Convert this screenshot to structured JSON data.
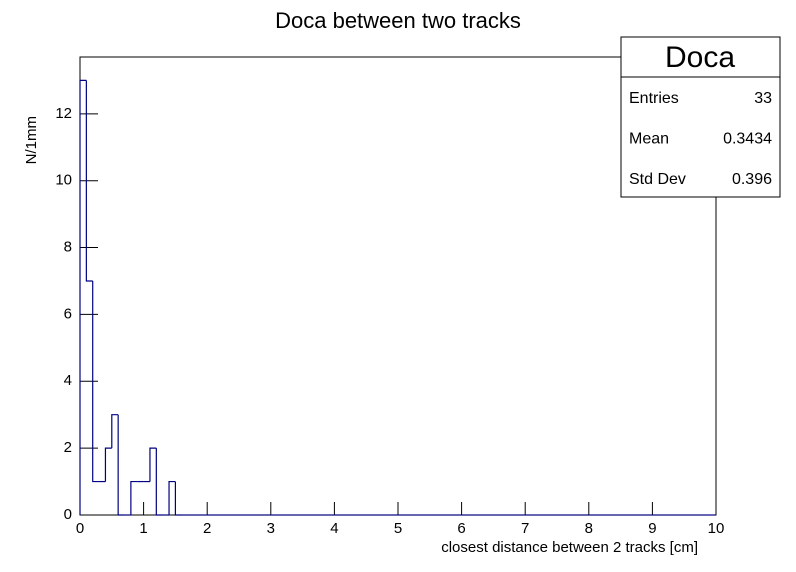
{
  "chart_data": {
    "type": "histogram",
    "title": "Doca between two tracks",
    "xlabel": "closest distance between 2 tracks   [cm]",
    "ylabel": "N/1mm",
    "color": "#000080",
    "bins": [
      0,
      0.1,
      0.2,
      0.3,
      0.4,
      0.5,
      0.6,
      0.7,
      0.8,
      0.9,
      1,
      1.1,
      1.2,
      1.3,
      1.4,
      1.5,
      1.6,
      1.7,
      1.8,
      1.9,
      2,
      2.1,
      2.2,
      2.3,
      2.4,
      2.5,
      2.6,
      2.7,
      2.8,
      2.9,
      3,
      3.1,
      3.2,
      3.3,
      3.4,
      3.5,
      3.6,
      3.7,
      3.8,
      3.9,
      4,
      4.1,
      4.2,
      4.3,
      4.4,
      4.5,
      4.6,
      4.7,
      4.8,
      4.9,
      5,
      5.1,
      5.2,
      5.3,
      5.4,
      5.5,
      5.6,
      5.7,
      5.8,
      5.9,
      6,
      6.1,
      6.2,
      6.3,
      6.4,
      6.5,
      6.6,
      6.7,
      6.8,
      6.9,
      7,
      7.1,
      7.2,
      7.3,
      7.4,
      7.5,
      7.6,
      7.7,
      7.8,
      7.9,
      8,
      8.1,
      8.2,
      8.3,
      8.4,
      8.5,
      8.6,
      8.7,
      8.8,
      8.9,
      9,
      9.1,
      9.2,
      9.3,
      9.4,
      9.5,
      9.6,
      9.7,
      9.8,
      9.9,
      10
    ],
    "values": [
      13,
      7,
      1,
      1,
      2,
      3,
      0,
      0,
      1,
      1,
      1,
      2,
      0,
      0,
      1,
      0,
      0,
      0,
      0,
      0,
      0,
      0,
      0,
      0,
      0,
      0,
      0,
      0,
      0,
      0,
      0,
      0,
      0,
      0,
      0,
      0,
      0,
      0,
      0,
      0,
      0,
      0,
      0,
      0,
      0,
      0,
      0,
      0,
      0,
      0,
      0,
      0,
      0,
      0,
      0,
      0,
      0,
      0,
      0,
      0,
      0,
      0,
      0,
      0,
      0,
      0,
      0,
      0,
      0,
      0,
      0,
      0,
      0,
      0,
      0,
      0,
      0,
      0,
      0,
      0,
      0,
      0,
      0,
      0,
      0,
      0,
      0,
      0,
      0,
      0,
      0,
      0,
      0,
      0,
      0,
      0,
      0,
      0,
      0,
      0
    ],
    "xlim": [
      0,
      10
    ],
    "xticks": [
      0,
      1,
      2,
      3,
      4,
      5,
      6,
      7,
      8,
      9,
      10
    ],
    "ylim": [
      0,
      13.7
    ],
    "yticks": [
      0,
      2,
      4,
      6,
      8,
      10,
      12
    ],
    "stats": {
      "name": "Doca",
      "rows": [
        [
          "Entries",
          "33"
        ],
        [
          "Mean",
          "0.3434"
        ],
        [
          "Std Dev",
          "0.396"
        ]
      ]
    }
  }
}
